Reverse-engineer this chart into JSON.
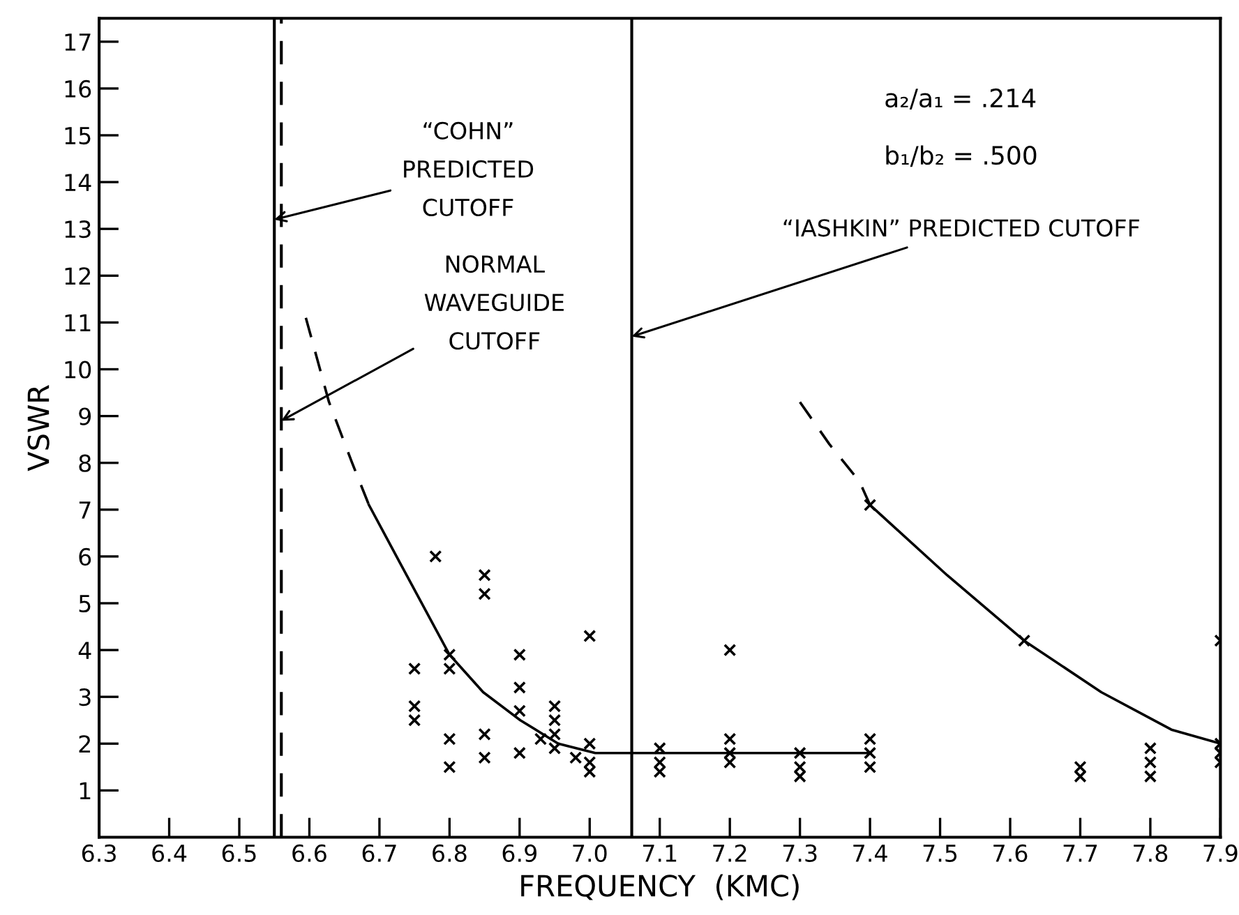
{
  "chart_data": {
    "type": "scatter",
    "xlabel": "FREQUENCY  (KMC)",
    "ylabel": "VSWR",
    "xlim": [
      6.3,
      7.9
    ],
    "ylim": [
      0,
      17.5
    ],
    "xticks": [
      6.3,
      6.4,
      6.5,
      6.6,
      6.7,
      6.8,
      6.9,
      {
        "value": 7.0,
        "label": "7.0"
      },
      7.1,
      7.2,
      7.3,
      7.4,
      7.5,
      7.6,
      7.7,
      7.8,
      7.9
    ],
    "yticks": [
      1,
      2,
      3,
      4,
      5,
      6,
      7,
      8,
      9,
      10,
      11,
      12,
      13,
      14,
      15,
      16,
      17
    ],
    "grid": false,
    "legend": false,
    "marker": "cross",
    "series": [
      {
        "color": "#000000",
        "x": [
          6.78,
          6.85,
          6.85,
          7.0,
          6.9,
          6.8,
          6.75,
          6.8,
          6.9,
          6.9,
          6.75,
          6.75,
          6.95,
          6.95,
          6.95,
          6.95,
          6.93,
          6.8,
          6.8,
          6.85,
          6.85,
          6.9,
          6.98,
          7.0,
          7.0,
          7.0,
          7.1,
          7.1,
          7.1,
          7.2,
          7.2,
          7.2,
          7.2,
          7.3,
          7.3,
          7.3,
          7.4,
          7.4,
          7.4,
          7.4,
          7.62,
          7.7,
          7.7,
          7.8,
          7.8,
          7.8,
          7.9,
          7.9,
          7.9,
          7.9
        ],
        "values": [
          6.0,
          5.6,
          5.2,
          4.3,
          3.9,
          3.9,
          3.6,
          3.6,
          3.2,
          2.7,
          2.8,
          2.5,
          2.8,
          2.5,
          2.2,
          1.9,
          2.1,
          2.1,
          1.5,
          2.2,
          1.7,
          1.8,
          1.7,
          2.0,
          1.6,
          1.4,
          1.9,
          1.6,
          1.4,
          4.0,
          2.1,
          1.8,
          1.6,
          1.8,
          1.5,
          1.3,
          2.1,
          1.8,
          1.5,
          7.1,
          4.2,
          1.5,
          1.3,
          1.9,
          1.6,
          1.3,
          4.2,
          2.0,
          1.8,
          1.6
        ]
      },
      {
        "type": "line",
        "color": "#000000",
        "line_style": "dashed",
        "marker": "none",
        "x": [
          6.595,
          6.628,
          6.661,
          6.685
        ],
        "values": [
          11.1,
          9.3,
          8.0,
          7.1
        ]
      },
      {
        "type": "line",
        "color": "#000000",
        "line_style": "solid",
        "marker": "none",
        "x": [
          6.685,
          6.728,
          6.8,
          6.848,
          6.901,
          6.955,
          7.008,
          7.1,
          7.2,
          7.3,
          7.4
        ],
        "values": [
          7.1,
          5.9,
          3.9,
          3.1,
          2.5,
          2.0,
          1.8,
          1.8,
          1.8,
          1.8,
          1.8
        ]
      },
      {
        "type": "line",
        "color": "#000000",
        "line_style": "dashed",
        "marker": "none",
        "x": [
          7.3,
          7.342,
          7.385,
          7.4
        ],
        "values": [
          9.3,
          8.4,
          7.6,
          7.1
        ]
      },
      {
        "type": "line",
        "color": "#000000",
        "line_style": "solid",
        "marker": "none",
        "x": [
          7.4,
          7.51,
          7.62,
          7.73,
          7.83,
          7.9
        ],
        "values": [
          7.1,
          5.6,
          4.2,
          3.1,
          2.3,
          2.0
        ]
      }
    ],
    "ref_lines": [
      {
        "axis": "x",
        "value": 6.55,
        "color": "#000000",
        "line_style": "solid"
      },
      {
        "axis": "x",
        "value": 6.56,
        "color": "#000000",
        "line_style": "dashed"
      },
      {
        "axis": "x",
        "value": 7.06,
        "color": "#000000",
        "line_style": "solid"
      }
    ],
    "annotations": [
      {
        "text": "“COHN”\nPREDICTED\nCUTOFF",
        "x": 6.55,
        "y": 13.2
      },
      {
        "text": "NORMAL\nWAVEGUIDE\nCUTOFF",
        "x": 6.56,
        "y": 8.9
      },
      {
        "text": "“IASHKIN” PREDICTED CUTOFF",
        "x": 7.06,
        "y": 10.7
      },
      "a₂/a₁ = .214",
      "b₁/b₂ = .500"
    ]
  }
}
